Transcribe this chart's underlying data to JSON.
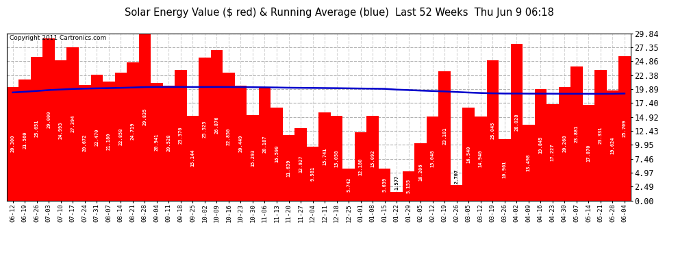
{
  "title": "Solar Energy Value ($ red) & Running Average (blue)  Last 52 Weeks  Thu Jun 9 06:18",
  "copyright": "Copyright 2011 Cartronics.com",
  "bar_color": "#FF0000",
  "line_color": "#0000CC",
  "background_color": "#FFFFFF",
  "ylim": [
    0.0,
    29.84
  ],
  "yticks": [
    0.0,
    2.49,
    4.97,
    7.46,
    9.95,
    12.43,
    14.92,
    17.4,
    19.89,
    22.38,
    24.86,
    27.35,
    29.84
  ],
  "labels": [
    "06-12",
    "06-19",
    "06-26",
    "07-03",
    "07-10",
    "07-17",
    "07-24",
    "07-31",
    "08-07",
    "08-14",
    "08-21",
    "08-28",
    "09-04",
    "09-11",
    "09-18",
    "09-25",
    "10-02",
    "10-09",
    "10-16",
    "10-23",
    "10-30",
    "11-06",
    "11-13",
    "11-20",
    "11-27",
    "12-04",
    "12-11",
    "12-18",
    "12-25",
    "01-01",
    "01-08",
    "01-15",
    "01-22",
    "01-29",
    "02-05",
    "02-12",
    "02-19",
    "02-26",
    "03-05",
    "03-12",
    "03-19",
    "03-26",
    "04-02",
    "04-09",
    "04-16",
    "04-23",
    "04-30",
    "05-07",
    "05-14",
    "05-21",
    "05-28",
    "06-04"
  ],
  "values": [
    20.3,
    21.56,
    25.651,
    29.0,
    24.993,
    27.394,
    20.672,
    22.47,
    21.18,
    22.858,
    24.719,
    29.835,
    20.941,
    20.528,
    23.376,
    15.144,
    25.525,
    26.876,
    22.85,
    20.449,
    15.293,
    20.187,
    16.59,
    11.639,
    12.927,
    9.581,
    15.741,
    15.058,
    5.742,
    12.18,
    15.092,
    5.639,
    1.577,
    5.155,
    10.206,
    15.048,
    23.101,
    2.707,
    16.54,
    14.94,
    25.045,
    10.961,
    28.028,
    13.498,
    19.845,
    17.227,
    20.268,
    23.881,
    17.07,
    23.331,
    19.624,
    25.709
  ],
  "running_avg": [
    19.3,
    19.42,
    19.56,
    19.72,
    19.82,
    19.92,
    19.98,
    20.03,
    20.07,
    20.12,
    20.18,
    20.25,
    20.28,
    20.28,
    20.28,
    20.26,
    20.27,
    20.28,
    20.27,
    20.26,
    20.23,
    20.21,
    20.18,
    20.14,
    20.12,
    20.1,
    20.08,
    20.06,
    20.03,
    20.0,
    19.97,
    19.94,
    19.8,
    19.72,
    19.63,
    19.55,
    19.48,
    19.38,
    19.28,
    19.2,
    19.14,
    19.1,
    19.1,
    19.08,
    19.08,
    19.07,
    19.06,
    19.06,
    19.05,
    19.05,
    19.06,
    19.1
  ]
}
